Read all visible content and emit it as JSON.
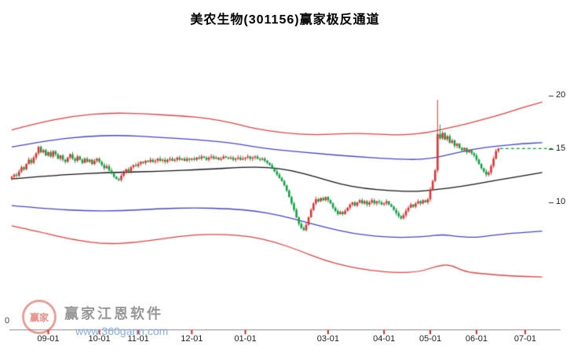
{
  "watermark": {
    "brand": "赢家江恩软件",
    "url": "www.360gann.com",
    "logo_text": "赢家"
  },
  "axis": {
    "origin_label": "0"
  },
  "chart_data": {
    "type": "candlestick",
    "title": "美农生物(301156)赢家极反通道",
    "stock_name": "美农生物",
    "stock_code": "301156",
    "indicator": "赢家极反通道",
    "grid": false,
    "legend": "none",
    "ylim": [
      0,
      25
    ],
    "y_ticks": [
      20,
      15,
      10
    ],
    "x_ticks": [
      {
        "i": 15,
        "label": "09-01"
      },
      {
        "i": 36,
        "label": "10-01"
      },
      {
        "i": 52,
        "label": "11-01"
      },
      {
        "i": 74,
        "label": "12-01"
      },
      {
        "i": 96,
        "label": "01-01"
      },
      {
        "i": 130,
        "label": "03-01"
      },
      {
        "i": 153,
        "label": "04-01"
      },
      {
        "i": 172,
        "label": "05-01"
      },
      {
        "i": 191,
        "label": "06-01"
      },
      {
        "i": 211,
        "label": "07-01"
      }
    ],
    "total_days_axis": 222,
    "closes": [
      12.4,
      12.6,
      12.5,
      12.9,
      13.3,
      13.1,
      13.6,
      14.0,
      13.7,
      14.2,
      14.6,
      15.2,
      14.7,
      14.9,
      14.4,
      14.7,
      14.3,
      14.8,
      14.5,
      14.1,
      14.4,
      14.0,
      13.8,
      14.2,
      14.5,
      14.1,
      13.9,
      14.3,
      14.0,
      13.7,
      14.1,
      13.8,
      14.0,
      13.6,
      13.9,
      14.1,
      13.8,
      13.5,
      13.2,
      13.4,
      13.0,
      12.7,
      12.4,
      12.2,
      12.1,
      12.5,
      12.8,
      13.1,
      12.9,
      13.3,
      13.5,
      13.4,
      13.6,
      13.8,
      13.7,
      13.9,
      13.8,
      14.0,
      13.8,
      13.9,
      14.1,
      13.9,
      14.0,
      13.8,
      14.0,
      14.1,
      13.9,
      14.0,
      14.2,
      14.0,
      14.1,
      13.9,
      14.1,
      14.0,
      14.1,
      14.0,
      14.2,
      14.1,
      14.3,
      14.2,
      14.0,
      14.2,
      14.3,
      14.1,
      14.2,
      14.0,
      14.1,
      14.3,
      14.2,
      14.1,
      14.2,
      14.0,
      14.1,
      14.2,
      14.0,
      14.1,
      14.2,
      14.3,
      14.1,
      14.2,
      14.3,
      14.1,
      14.0,
      14.1,
      13.9,
      13.7,
      13.5,
      13.2,
      12.9,
      12.6,
      12.3,
      12.0,
      11.6,
      11.1,
      10.5,
      9.9,
      9.3,
      8.6,
      8.0,
      7.6,
      7.4,
      7.9,
      8.6,
      9.3,
      9.9,
      10.3,
      10.1,
      10.4,
      10.2,
      10.5,
      10.2,
      9.9,
      9.5,
      9.2,
      8.9,
      9.1,
      8.9,
      9.2,
      9.5,
      9.8,
      10.0,
      9.7,
      10.0,
      10.2,
      9.9,
      10.1,
      9.8,
      10.0,
      10.2,
      9.9,
      10.1,
      10.0,
      9.8,
      9.9,
      10.1,
      9.8,
      9.6,
      9.3,
      9.0,
      8.7,
      8.5,
      8.8,
      9.2,
      9.5,
      9.8,
      9.6,
      9.9,
      10.1,
      9.9,
      10.2,
      10.0,
      10.3,
      11.2,
      12.0,
      13.0,
      16.4,
      16.0,
      16.5,
      15.9,
      16.2,
      15.6,
      15.8,
      15.3,
      15.5,
      15.1,
      14.9,
      15.1,
      14.7,
      14.9,
      14.6,
      14.4,
      14.0,
      13.6,
      13.2,
      12.9,
      12.6,
      12.8,
      13.4,
      14.1,
      14.8,
      15.05
    ],
    "high_overrides": {
      "175": 19.6,
      "176": 17.3
    },
    "low_overrides": {
      "175": 12.8
    },
    "last_price_line": {
      "value": 15.05,
      "style": "dashed",
      "color": "#00a32e"
    },
    "colors": {
      "up": "#e03232",
      "down": "#12a044"
    },
    "channel_lines": {
      "upper_red": {
        "color": "#e84040",
        "points": [
          [
            0,
            16.8
          ],
          [
            10,
            17.4
          ],
          [
            25,
            18.1
          ],
          [
            40,
            18.4
          ],
          [
            55,
            18.3
          ],
          [
            70,
            18.1
          ],
          [
            80,
            17.9
          ],
          [
            90,
            17.5
          ],
          [
            100,
            16.9
          ],
          [
            112,
            16.5
          ],
          [
            125,
            16.3
          ],
          [
            140,
            16.5
          ],
          [
            150,
            16.4
          ],
          [
            160,
            16.3
          ],
          [
            170,
            16.5
          ],
          [
            178,
            16.9
          ],
          [
            186,
            17.3
          ],
          [
            194,
            17.8
          ],
          [
            202,
            18.3
          ],
          [
            210,
            18.9
          ],
          [
            218,
            19.4
          ]
        ]
      },
      "upper_blue": {
        "color": "#4343d8",
        "points": [
          [
            0,
            15.2
          ],
          [
            15,
            15.8
          ],
          [
            30,
            16.2
          ],
          [
            45,
            16.3
          ],
          [
            60,
            16.1
          ],
          [
            75,
            15.9
          ],
          [
            90,
            15.6
          ],
          [
            100,
            15.2
          ],
          [
            110,
            14.9
          ],
          [
            125,
            14.6
          ],
          [
            140,
            14.3
          ],
          [
            155,
            14.1
          ],
          [
            165,
            14.0
          ],
          [
            172,
            14.1
          ],
          [
            180,
            14.5
          ],
          [
            190,
            15.0
          ],
          [
            200,
            15.3
          ],
          [
            210,
            15.5
          ],
          [
            218,
            15.6
          ]
        ]
      },
      "middle_black": {
        "color": "#141414",
        "points": [
          [
            0,
            12.2
          ],
          [
            20,
            12.6
          ],
          [
            40,
            12.8
          ],
          [
            60,
            12.9
          ],
          [
            80,
            13.1
          ],
          [
            95,
            13.3
          ],
          [
            105,
            13.3
          ],
          [
            115,
            13.0
          ],
          [
            125,
            12.4
          ],
          [
            135,
            11.7
          ],
          [
            145,
            11.3
          ],
          [
            155,
            11.1
          ],
          [
            165,
            11.0
          ],
          [
            175,
            11.2
          ],
          [
            185,
            11.5
          ],
          [
            195,
            11.9
          ],
          [
            205,
            12.3
          ],
          [
            218,
            12.8
          ]
        ]
      },
      "lower_blue": {
        "color": "#4343d8",
        "points": [
          [
            0,
            9.7
          ],
          [
            15,
            9.4
          ],
          [
            30,
            9.2
          ],
          [
            45,
            9.2
          ],
          [
            60,
            9.4
          ],
          [
            75,
            9.5
          ],
          [
            90,
            9.4
          ],
          [
            100,
            9.2
          ],
          [
            110,
            8.8
          ],
          [
            120,
            8.2
          ],
          [
            130,
            7.6
          ],
          [
            140,
            7.1
          ],
          [
            150,
            6.8
          ],
          [
            160,
            6.7
          ],
          [
            170,
            6.8
          ],
          [
            177,
            7.0
          ],
          [
            183,
            6.8
          ],
          [
            190,
            6.7
          ],
          [
            197,
            6.9
          ],
          [
            205,
            7.1
          ],
          [
            218,
            7.3
          ]
        ]
      },
      "lower_red": {
        "color": "#e84040",
        "points": [
          [
            0,
            7.8
          ],
          [
            12,
            7.2
          ],
          [
            25,
            6.5
          ],
          [
            38,
            6.1
          ],
          [
            50,
            6.2
          ],
          [
            62,
            6.6
          ],
          [
            75,
            7.0
          ],
          [
            88,
            7.0
          ],
          [
            98,
            6.8
          ],
          [
            108,
            6.3
          ],
          [
            118,
            5.5
          ],
          [
            128,
            4.6
          ],
          [
            138,
            4.0
          ],
          [
            148,
            3.6
          ],
          [
            158,
            3.4
          ],
          [
            168,
            3.5
          ],
          [
            174,
            4.0
          ],
          [
            180,
            4.2
          ],
          [
            186,
            3.5
          ],
          [
            194,
            3.3
          ],
          [
            205,
            3.1
          ],
          [
            218,
            3.0
          ]
        ]
      }
    }
  }
}
